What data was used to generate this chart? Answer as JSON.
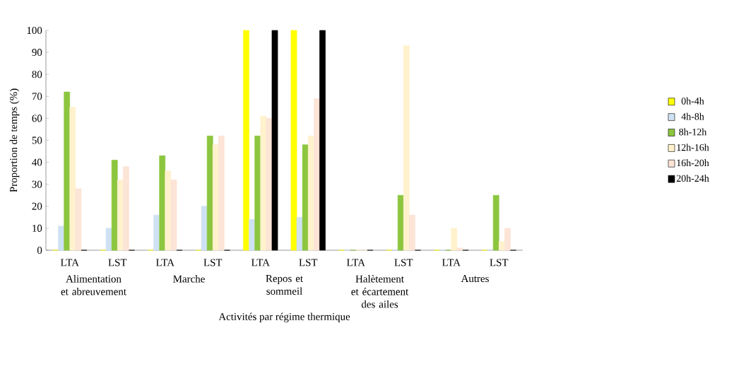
{
  "chart_data": {
    "type": "bar",
    "xlabel": "Activités par régime thermique",
    "ylabel": "Proportion de temps (%)",
    "categories": [
      "LTA",
      "LST",
      "LTA",
      "LST",
      "LTA",
      "LST",
      "LTA",
      "LST",
      "LTA",
      "LST"
    ],
    "annotations": [
      "Alimentation et abreuvement",
      "Marche",
      "Repos et sommeil",
      "Halètement et écartement des ailes",
      "Autres"
    ],
    "series": [
      {
        "name": "0h-4h",
        "color": "#ffff00",
        "values": [
          0,
          0,
          0,
          0,
          100,
          100,
          0,
          0,
          0,
          0
        ]
      },
      {
        "name": "4h-8h",
        "color": "#cfe2f3",
        "values": [
          11,
          10,
          16,
          20,
          14,
          15,
          0,
          0,
          0,
          0
        ]
      },
      {
        "name": "8h-12h",
        "color": "#8cc63f",
        "values": [
          72,
          41,
          43,
          52,
          52,
          48,
          0,
          25,
          0,
          25
        ]
      },
      {
        "name": "12h-16h",
        "color": "#fff2cc",
        "values": [
          65,
          32,
          36,
          48,
          61,
          52,
          0,
          93,
          10,
          4
        ]
      },
      {
        "name": "16h-20h",
        "color": "#fce4d6",
        "values": [
          28,
          38,
          32,
          52,
          60,
          69,
          0,
          16,
          1,
          10
        ]
      },
      {
        "name": "20h-24h",
        "color": "#000000",
        "values": [
          0,
          0,
          0,
          0,
          100,
          100,
          0,
          0,
          0,
          0
        ]
      }
    ],
    "ylim": [
      0,
      100
    ],
    "yticks": [
      0,
      10,
      20,
      30,
      40,
      50,
      60,
      70,
      80,
      90,
      100
    ],
    "grid": false,
    "legend": "right"
  }
}
